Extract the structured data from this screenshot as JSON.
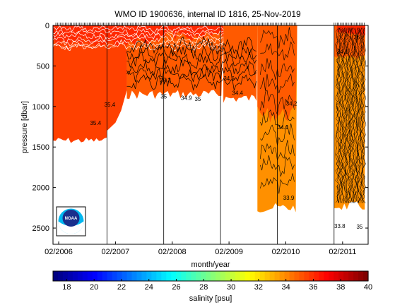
{
  "chart_data": {
    "type": "heatmap",
    "title": "WMO ID 1900636, internal ID 1816, 25-Nov-2019",
    "xlabel": "month/year",
    "ylabel": "pressure [dbar]",
    "x_tick_labels": [
      "02/2006",
      "02/2007",
      "02/2008",
      "02/2009",
      "02/2010",
      "02/2011"
    ],
    "y_ticks": [
      0,
      500,
      1000,
      1500,
      2000,
      2500
    ],
    "ylim": [
      2700,
      0
    ],
    "y_reversed": true,
    "grid": "vertical lines at x ticks",
    "colorbar": {
      "label": "salinity [psu]",
      "ticks": [
        18,
        20,
        22,
        24,
        26,
        28,
        30,
        32,
        34,
        36,
        38,
        40
      ],
      "range": [
        17,
        40
      ],
      "colormap": "jet"
    },
    "contour_labels": [
      {
        "text": "35.4",
        "x": "2007.00",
        "p": 1000
      },
      {
        "text": "35.4",
        "x": "2006.75",
        "p": 1230
      },
      {
        "text": "35",
        "x": "2007.95",
        "p": 900
      },
      {
        "text": "35.3",
        "x": "2007.98",
        "p": 700
      },
      {
        "text": "34.9",
        "x": "2008.35",
        "p": 920
      },
      {
        "text": "35",
        "x": "2008.55",
        "p": 930
      },
      {
        "text": "34.6",
        "x": "2009.10",
        "p": 680
      },
      {
        "text": "34.4",
        "x": "2009.25",
        "p": 860
      },
      {
        "text": "34.2",
        "x": "2010.20",
        "p": 990
      },
      {
        "text": "34.1",
        "x": "2010.05",
        "p": 1280
      },
      {
        "text": "33.9",
        "x": "2010.15",
        "p": 2150
      },
      {
        "text": "33.8",
        "x": "2011.05",
        "p": 2500
      },
      {
        "text": "34.1",
        "x": "2011.10",
        "p": 350
      },
      {
        "text": "36",
        "x": "2011.35",
        "p": 170
      },
      {
        "text": "35",
        "x": "2011.40",
        "p": 2510
      }
    ],
    "salinity_fields": [
      {
        "segment": "2006.0-2007.0",
        "surface": 36.6,
        "deep": 35.3,
        "max_pressure": 1400
      },
      {
        "segment": "2007.0-2009.0",
        "surface": 36.2,
        "deep": 34.9,
        "max_pressure": 950
      },
      {
        "segment": "2009.0-2009.9",
        "surface": 35.6,
        "deep": 34.5,
        "max_pressure": 1000
      },
      {
        "segment": "2009.6-2010.3",
        "surface": 35.2,
        "deep": 34.1,
        "max_pressure": 2300
      },
      {
        "segment": "2011.0-2011.5",
        "surface": 36.0,
        "deep": 34.0,
        "max_pressure": 2300
      }
    ]
  },
  "noaa_logo_text": "NOAA",
  "colors": {
    "surface_red": "#ff2800",
    "upper_orange_red": "#ff4000",
    "mid_orange": "#ff5a00",
    "deep_orange": "#ff9000"
  }
}
